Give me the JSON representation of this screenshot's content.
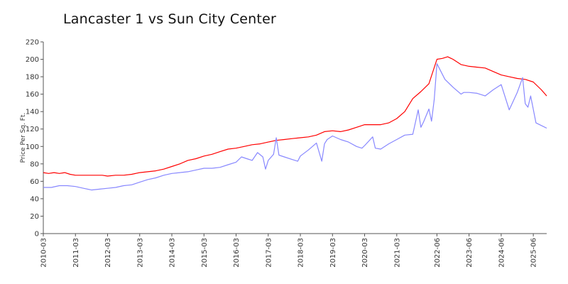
{
  "chart_data": {
    "type": "line",
    "title": "Lancaster 1 vs Sun City Center",
    "xlabel": "",
    "ylabel": "Price Per Sq. Ft.",
    "ylim": [
      0,
      220
    ],
    "yticks": [
      0,
      20,
      40,
      60,
      80,
      100,
      120,
      140,
      160,
      180,
      200,
      220
    ],
    "xlim": [
      "2010-03",
      "2025-11"
    ],
    "xticks": [
      "2010-03",
      "2011-03",
      "2012-03",
      "2013-03",
      "2014-03",
      "2015-03",
      "2016-03",
      "2017-03",
      "2018-03",
      "2019-03",
      "2020-03",
      "2021-03",
      "2022-06",
      "2023-06",
      "2024-06",
      "2025-06"
    ],
    "grid": false,
    "legend": "none",
    "series": [
      {
        "color": "#ff0000",
        "points": [
          [
            "2010-03",
            70
          ],
          [
            "2010-05",
            69
          ],
          [
            "2010-07",
            70
          ],
          [
            "2010-09",
            69
          ],
          [
            "2010-11",
            70
          ],
          [
            "2011-01",
            68
          ],
          [
            "2011-03",
            67
          ],
          [
            "2011-06",
            67
          ],
          [
            "2011-09",
            67
          ],
          [
            "2011-12",
            67
          ],
          [
            "2012-01",
            67
          ],
          [
            "2012-03",
            66
          ],
          [
            "2012-06",
            67
          ],
          [
            "2012-09",
            67
          ],
          [
            "2012-12",
            68
          ],
          [
            "2013-03",
            70
          ],
          [
            "2013-06",
            71
          ],
          [
            "2013-09",
            72
          ],
          [
            "2013-12",
            74
          ],
          [
            "2014-03",
            77
          ],
          [
            "2014-06",
            80
          ],
          [
            "2014-09",
            84
          ],
          [
            "2014-12",
            86
          ],
          [
            "2015-03",
            89
          ],
          [
            "2015-06",
            91
          ],
          [
            "2015-09",
            94
          ],
          [
            "2015-12",
            97
          ],
          [
            "2016-03",
            98
          ],
          [
            "2016-06",
            100
          ],
          [
            "2016-09",
            102
          ],
          [
            "2016-12",
            103
          ],
          [
            "2017-03",
            105
          ],
          [
            "2017-06",
            107
          ],
          [
            "2017-09",
            108
          ],
          [
            "2017-12",
            109
          ],
          [
            "2018-03",
            110
          ],
          [
            "2018-06",
            111
          ],
          [
            "2018-09",
            113
          ],
          [
            "2018-12",
            117
          ],
          [
            "2019-03",
            118
          ],
          [
            "2019-06",
            117
          ],
          [
            "2019-09",
            119
          ],
          [
            "2019-12",
            122
          ],
          [
            "2020-03",
            125
          ],
          [
            "2020-06",
            125
          ],
          [
            "2020-09",
            125
          ],
          [
            "2020-12",
            127
          ],
          [
            "2021-03",
            132
          ],
          [
            "2021-06",
            140
          ],
          [
            "2021-09",
            155
          ],
          [
            "2021-12",
            163
          ],
          [
            "2022-03",
            172
          ],
          [
            "2022-06",
            200
          ],
          [
            "2022-08",
            201
          ],
          [
            "2022-10",
            203
          ],
          [
            "2022-12",
            200
          ],
          [
            "2023-03",
            194
          ],
          [
            "2023-06",
            192
          ],
          [
            "2023-09",
            191
          ],
          [
            "2023-12",
            190
          ],
          [
            "2024-03",
            186
          ],
          [
            "2024-06",
            182
          ],
          [
            "2024-09",
            180
          ],
          [
            "2024-12",
            178
          ],
          [
            "2025-03",
            177
          ],
          [
            "2025-06",
            174
          ],
          [
            "2025-09",
            165
          ],
          [
            "2025-11",
            158
          ]
        ]
      },
      {
        "color": "#8888ff",
        "points": [
          [
            "2010-03",
            53
          ],
          [
            "2010-06",
            53
          ],
          [
            "2010-09",
            55
          ],
          [
            "2010-12",
            55
          ],
          [
            "2011-03",
            54
          ],
          [
            "2011-06",
            52
          ],
          [
            "2011-09",
            50
          ],
          [
            "2011-12",
            51
          ],
          [
            "2012-03",
            52
          ],
          [
            "2012-06",
            53
          ],
          [
            "2012-09",
            55
          ],
          [
            "2012-12",
            56
          ],
          [
            "2013-03",
            59
          ],
          [
            "2013-06",
            62
          ],
          [
            "2013-09",
            64
          ],
          [
            "2013-12",
            67
          ],
          [
            "2014-03",
            69
          ],
          [
            "2014-06",
            70
          ],
          [
            "2014-09",
            71
          ],
          [
            "2014-12",
            73
          ],
          [
            "2015-03",
            75
          ],
          [
            "2015-06",
            75
          ],
          [
            "2015-09",
            76
          ],
          [
            "2015-12",
            79
          ],
          [
            "2016-03",
            82
          ],
          [
            "2016-05",
            88
          ],
          [
            "2016-07",
            86
          ],
          [
            "2016-09",
            84
          ],
          [
            "2016-11",
            93
          ],
          [
            "2017-01",
            88
          ],
          [
            "2017-02",
            74
          ],
          [
            "2017-03",
            84
          ],
          [
            "2017-05",
            91
          ],
          [
            "2017-06",
            110
          ],
          [
            "2017-07",
            90
          ],
          [
            "2017-09",
            88
          ],
          [
            "2017-12",
            85
          ],
          [
            "2018-02",
            83
          ],
          [
            "2018-03",
            89
          ],
          [
            "2018-06",
            96
          ],
          [
            "2018-09",
            104
          ],
          [
            "2018-11",
            83
          ],
          [
            "2018-12",
            103
          ],
          [
            "2019-01",
            108
          ],
          [
            "2019-03",
            112
          ],
          [
            "2019-06",
            108
          ],
          [
            "2019-09",
            105
          ],
          [
            "2019-12",
            100
          ],
          [
            "2020-02",
            98
          ],
          [
            "2020-03",
            101
          ],
          [
            "2020-06",
            111
          ],
          [
            "2020-07",
            98
          ],
          [
            "2020-09",
            97
          ],
          [
            "2020-12",
            103
          ],
          [
            "2021-03",
            108
          ],
          [
            "2021-06",
            113
          ],
          [
            "2021-09",
            114
          ],
          [
            "2021-11",
            142
          ],
          [
            "2021-12",
            122
          ],
          [
            "2022-01",
            128
          ],
          [
            "2022-03",
            143
          ],
          [
            "2022-04",
            129
          ],
          [
            "2022-05",
            154
          ],
          [
            "2022-06",
            195
          ],
          [
            "2022-09",
            177
          ],
          [
            "2022-12",
            168
          ],
          [
            "2023-03",
            160
          ],
          [
            "2023-04",
            162
          ],
          [
            "2023-06",
            162
          ],
          [
            "2023-09",
            161
          ],
          [
            "2023-12",
            158
          ],
          [
            "2024-03",
            165
          ],
          [
            "2024-06",
            171
          ],
          [
            "2024-09",
            142
          ],
          [
            "2024-12",
            162
          ],
          [
            "2025-02",
            179
          ],
          [
            "2025-03",
            149
          ],
          [
            "2025-04",
            145
          ],
          [
            "2025-05",
            158
          ],
          [
            "2025-07",
            127
          ],
          [
            "2025-09",
            124
          ],
          [
            "2025-11",
            121
          ]
        ]
      }
    ]
  }
}
